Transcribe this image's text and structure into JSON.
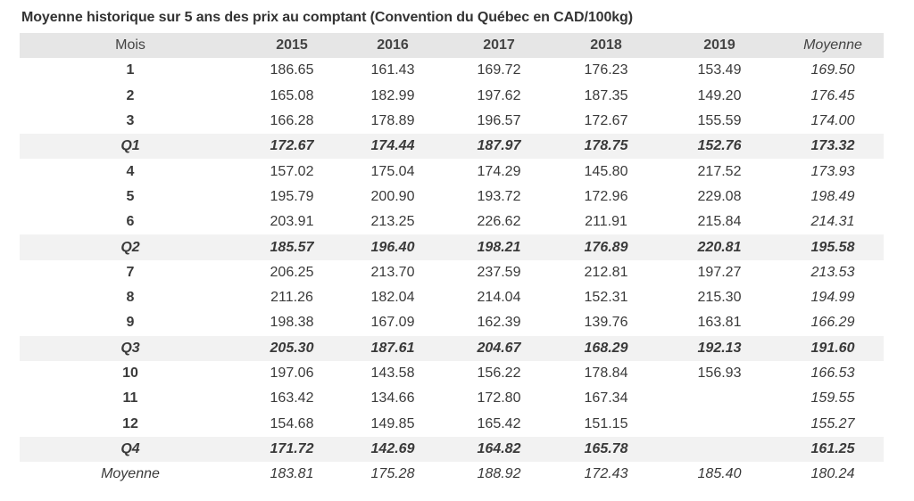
{
  "title": "Moyenne historique sur 5 ans des prix au comptant (Convention du Québec en CAD/100kg)",
  "colors": {
    "header_bg": "#e6e6e6",
    "quarter_bg": "#f2f2f2",
    "text": "#3a3a3a"
  },
  "table": {
    "headers": [
      "Mois",
      "2015",
      "2016",
      "2017",
      "2018",
      "2019",
      "Moyenne"
    ],
    "rows": [
      {
        "type": "month",
        "cells": [
          "1",
          "186.65",
          "161.43",
          "169.72",
          "176.23",
          "153.49",
          "169.50"
        ]
      },
      {
        "type": "month",
        "cells": [
          "2",
          "165.08",
          "182.99",
          "197.62",
          "187.35",
          "149.20",
          "176.45"
        ]
      },
      {
        "type": "month",
        "cells": [
          "3",
          "166.28",
          "178.89",
          "196.57",
          "172.67",
          "155.59",
          "174.00"
        ]
      },
      {
        "type": "quarter",
        "cells": [
          "Q1",
          "172.67",
          "174.44",
          "187.97",
          "178.75",
          "152.76",
          "173.32"
        ]
      },
      {
        "type": "month",
        "cells": [
          "4",
          "157.02",
          "175.04",
          "174.29",
          "145.80",
          "217.52",
          "173.93"
        ]
      },
      {
        "type": "month",
        "cells": [
          "5",
          "195.79",
          "200.90",
          "193.72",
          "172.96",
          "229.08",
          "198.49"
        ]
      },
      {
        "type": "month",
        "cells": [
          "6",
          "203.91",
          "213.25",
          "226.62",
          "211.91",
          "215.84",
          "214.31"
        ]
      },
      {
        "type": "quarter",
        "cells": [
          "Q2",
          "185.57",
          "196.40",
          "198.21",
          "176.89",
          "220.81",
          "195.58"
        ]
      },
      {
        "type": "month",
        "cells": [
          "7",
          "206.25",
          "213.70",
          "237.59",
          "212.81",
          "197.27",
          "213.53"
        ]
      },
      {
        "type": "month",
        "cells": [
          "8",
          "211.26",
          "182.04",
          "214.04",
          "152.31",
          "215.30",
          "194.99"
        ]
      },
      {
        "type": "month",
        "cells": [
          "9",
          "198.38",
          "167.09",
          "162.39",
          "139.76",
          "163.81",
          "166.29"
        ]
      },
      {
        "type": "quarter",
        "cells": [
          "Q3",
          "205.30",
          "187.61",
          "204.67",
          "168.29",
          "192.13",
          "191.60"
        ]
      },
      {
        "type": "month",
        "cells": [
          "10",
          "197.06",
          "143.58",
          "156.22",
          "178.84",
          "156.93",
          "166.53"
        ]
      },
      {
        "type": "month",
        "cells": [
          "11",
          "163.42",
          "134.66",
          "172.80",
          "167.34",
          "",
          "159.55"
        ]
      },
      {
        "type": "month",
        "cells": [
          "12",
          "154.68",
          "149.85",
          "165.42",
          "151.15",
          "",
          "155.27"
        ]
      },
      {
        "type": "quarter",
        "cells": [
          "Q4",
          "171.72",
          "142.69",
          "164.82",
          "165.78",
          "",
          "161.25"
        ]
      },
      {
        "type": "total",
        "cells": [
          "Moyenne",
          "183.81",
          "175.28",
          "188.92",
          "172.43",
          "185.40",
          "180.24"
        ]
      }
    ]
  }
}
